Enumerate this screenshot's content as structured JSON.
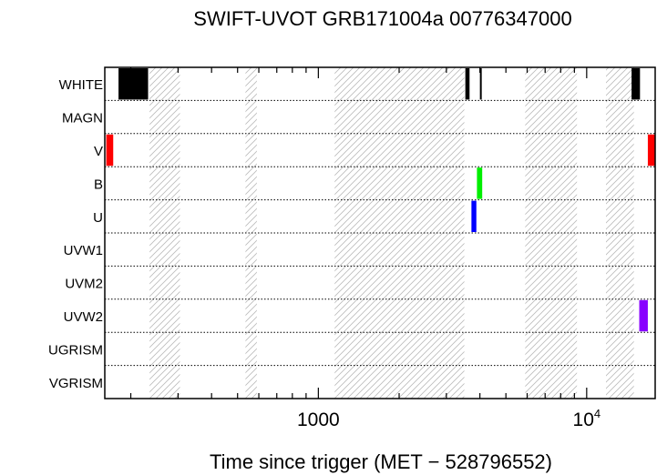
{
  "chart_data": {
    "type": "bar",
    "title": "SWIFT-UVOT GRB171004a 00776347000",
    "xlabel": "Time since trigger (MET − 528796552)",
    "ylabel": "",
    "x_scale": "log",
    "xlim": [
      160,
      18000
    ],
    "x_ticks": [
      {
        "value": 1000,
        "base": "1000",
        "exp": ""
      },
      {
        "value": 10000,
        "base": "10",
        "exp": "4"
      }
    ],
    "grid": "dotted separators between filter rows",
    "categories": [
      "WHITE",
      "MAGN",
      "V",
      "B",
      "U",
      "UVW1",
      "UVM2",
      "UVW2",
      "UGRISM",
      "VGRISM"
    ],
    "hatched_intervals": [
      [
        235,
        305
      ],
      [
        535,
        590
      ],
      [
        1150,
        3500
      ],
      [
        5900,
        9200
      ],
      [
        11800,
        15000
      ]
    ],
    "exposures": [
      {
        "filter": "WHITE",
        "color": "#000000",
        "start": 180,
        "end": 232
      },
      {
        "filter": "WHITE",
        "color": "#000000",
        "start": 3530,
        "end": 3660
      },
      {
        "filter": "WHITE",
        "color": "#000000",
        "start": 4000,
        "end": 4040
      },
      {
        "filter": "WHITE",
        "color": "#000000",
        "start": 14700,
        "end": 15800
      },
      {
        "filter": "V",
        "color": "#ff0000",
        "start": 162,
        "end": 172
      },
      {
        "filter": "V",
        "color": "#ff0000",
        "start": 16900,
        "end": 18000
      },
      {
        "filter": "B",
        "color": "#00ee00",
        "start": 3900,
        "end": 4080
      },
      {
        "filter": "U",
        "color": "#0000ff",
        "start": 3720,
        "end": 3880
      },
      {
        "filter": "UVW2",
        "color": "#8800ff",
        "start": 15700,
        "end": 16900
      }
    ]
  }
}
